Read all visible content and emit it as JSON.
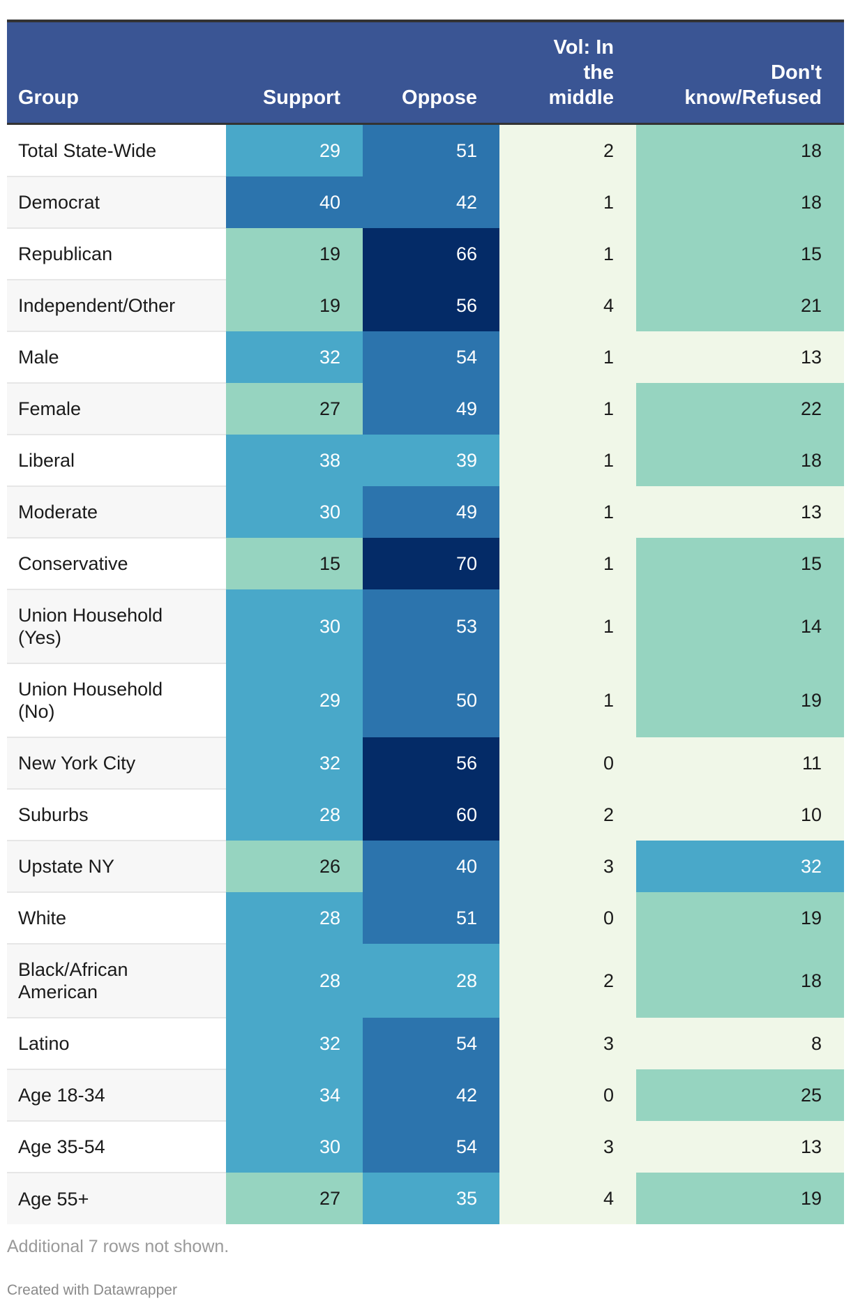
{
  "chart_data": {
    "type": "table",
    "columns": [
      "Group",
      "Support",
      "Oppose",
      "Vol: In the middle",
      "Don't know/Refused"
    ],
    "rows": [
      {
        "group": "Total State-Wide",
        "support": 29,
        "oppose": 51,
        "middle": 2,
        "dk": 18
      },
      {
        "group": "Democrat",
        "support": 40,
        "oppose": 42,
        "middle": 1,
        "dk": 18
      },
      {
        "group": "Republican",
        "support": 19,
        "oppose": 66,
        "middle": 1,
        "dk": 15
      },
      {
        "group": "Independent/Other",
        "support": 19,
        "oppose": 56,
        "middle": 4,
        "dk": 21
      },
      {
        "group": "Male",
        "support": 32,
        "oppose": 54,
        "middle": 1,
        "dk": 13
      },
      {
        "group": "Female",
        "support": 27,
        "oppose": 49,
        "middle": 1,
        "dk": 22
      },
      {
        "group": "Liberal",
        "support": 38,
        "oppose": 39,
        "middle": 1,
        "dk": 18
      },
      {
        "group": "Moderate",
        "support": 30,
        "oppose": 49,
        "middle": 1,
        "dk": 13
      },
      {
        "group": "Conservative",
        "support": 15,
        "oppose": 70,
        "middle": 1,
        "dk": 15
      },
      {
        "group": "Union Household (Yes)",
        "support": 30,
        "oppose": 53,
        "middle": 1,
        "dk": 14
      },
      {
        "group": "Union Household (No)",
        "support": 29,
        "oppose": 50,
        "middle": 1,
        "dk": 19
      },
      {
        "group": "New York City",
        "support": 32,
        "oppose": 56,
        "middle": 0,
        "dk": 11
      },
      {
        "group": "Suburbs",
        "support": 28,
        "oppose": 60,
        "middle": 2,
        "dk": 10
      },
      {
        "group": "Upstate NY",
        "support": 26,
        "oppose": 40,
        "middle": 3,
        "dk": 32
      },
      {
        "group": "White",
        "support": 28,
        "oppose": 51,
        "middle": 0,
        "dk": 19
      },
      {
        "group": "Black/African American",
        "support": 28,
        "oppose": 28,
        "middle": 2,
        "dk": 18
      },
      {
        "group": "Latino",
        "support": 32,
        "oppose": 54,
        "middle": 3,
        "dk": 8
      },
      {
        "group": "Age 18-34",
        "support": 34,
        "oppose": 42,
        "middle": 0,
        "dk": 25
      },
      {
        "group": "Age 35-54",
        "support": 30,
        "oppose": 54,
        "middle": 3,
        "dk": 13
      },
      {
        "group": "Age 55+",
        "support": 27,
        "oppose": 35,
        "middle": 4,
        "dk": 19
      }
    ],
    "color_scale": {
      "thresholds": [
        10,
        14,
        28,
        40,
        55
      ],
      "colors": [
        "#f0f7e8",
        "#f0f7e8",
        "#96d4c0",
        "#49a8c9",
        "#2c74ad",
        "#042b67"
      ],
      "text_light": "#ffffff",
      "text_dark": "#1a1a1a"
    }
  },
  "header": {
    "group": "Group",
    "support": "Support",
    "oppose": "Oppose",
    "middle_line1": "Vol: In",
    "middle_line2": "the",
    "middle_line3": "middle",
    "dk_line1": "Don't",
    "dk_line2": "know/Refused"
  },
  "footer": {
    "note": "Additional 7 rows not shown.",
    "credit": "Created with Datawrapper"
  },
  "colors": {
    "header_bg": "#3a5594",
    "row_alt": "#f7f7f7",
    "row_base": "#ffffff"
  }
}
